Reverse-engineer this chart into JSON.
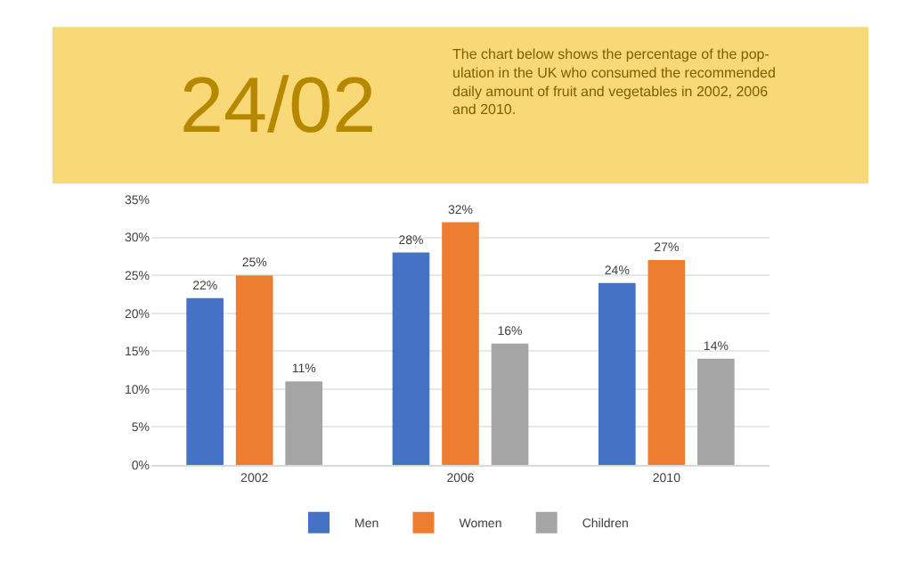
{
  "chart_data": {
    "type": "bar",
    "title": "24/02",
    "subtitle": "The chart below shows the percentage of the pop-\nulation in the UK who consumed the recommended\ndaily amount of fruit and vegetables in 2002, 2006\nand 2010.",
    "categories": [
      "2002",
      "2006",
      "2010"
    ],
    "series": [
      {
        "name": "Men",
        "color": "#4472c4",
        "values": [
          22,
          28,
          24
        ],
        "value_labels": [
          "22%",
          "28%",
          "24%"
        ]
      },
      {
        "name": "Women",
        "color": "#ed7d31",
        "values": [
          25,
          32,
          27
        ],
        "value_labels": [
          "25%",
          "32%",
          "27%"
        ]
      },
      {
        "name": "Children",
        "color": "#a5a5a5",
        "values": [
          11,
          16,
          14
        ],
        "value_labels": [
          "11%",
          "16%",
          "14%"
        ]
      }
    ],
    "ylim": [
      0,
      35
    ],
    "yticks": [
      {
        "value": 0,
        "label": "0%"
      },
      {
        "value": 5,
        "label": "5%"
      },
      {
        "value": 10,
        "label": "10%"
      },
      {
        "value": 15,
        "label": "15%"
      },
      {
        "value": 20,
        "label": "20%"
      },
      {
        "value": 25,
        "label": "25%"
      },
      {
        "value": 30,
        "label": "30%"
      },
      {
        "value": 35,
        "label": "35%"
      }
    ],
    "grid": "y",
    "legend": "bottom"
  }
}
